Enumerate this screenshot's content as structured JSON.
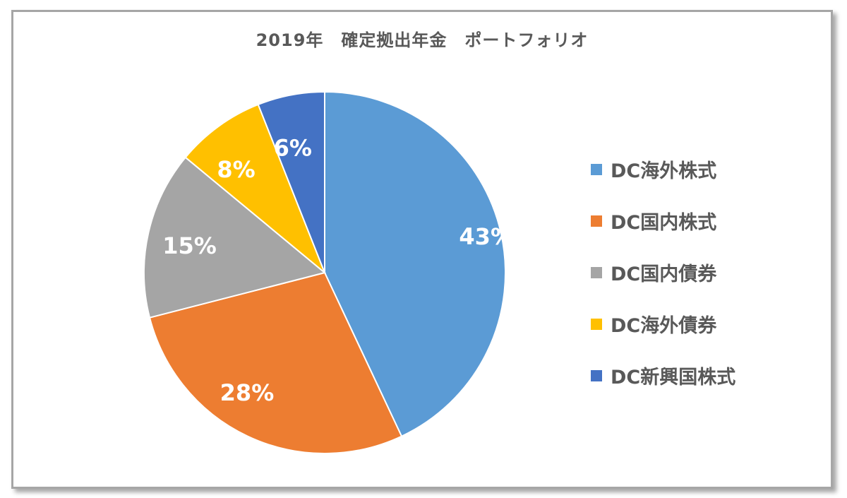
{
  "chart_data": {
    "type": "pie",
    "title": "2019年　確定拠出年金　ポートフォリオ",
    "categories": [
      "DC海外株式",
      "DC国内株式",
      "DC国内債券",
      "DC海外債券",
      "DC新興国株式"
    ],
    "values": [
      43,
      28,
      15,
      8,
      6
    ],
    "data_labels": [
      "43%",
      "28%",
      "15%",
      "8%",
      "6%"
    ],
    "colors": [
      "#5b9bd5",
      "#ed7d31",
      "#a5a5a5",
      "#ffc000",
      "#4472c4"
    ],
    "legend_position": "right",
    "start_angle": "12 o'clock",
    "direction": "clockwise"
  }
}
